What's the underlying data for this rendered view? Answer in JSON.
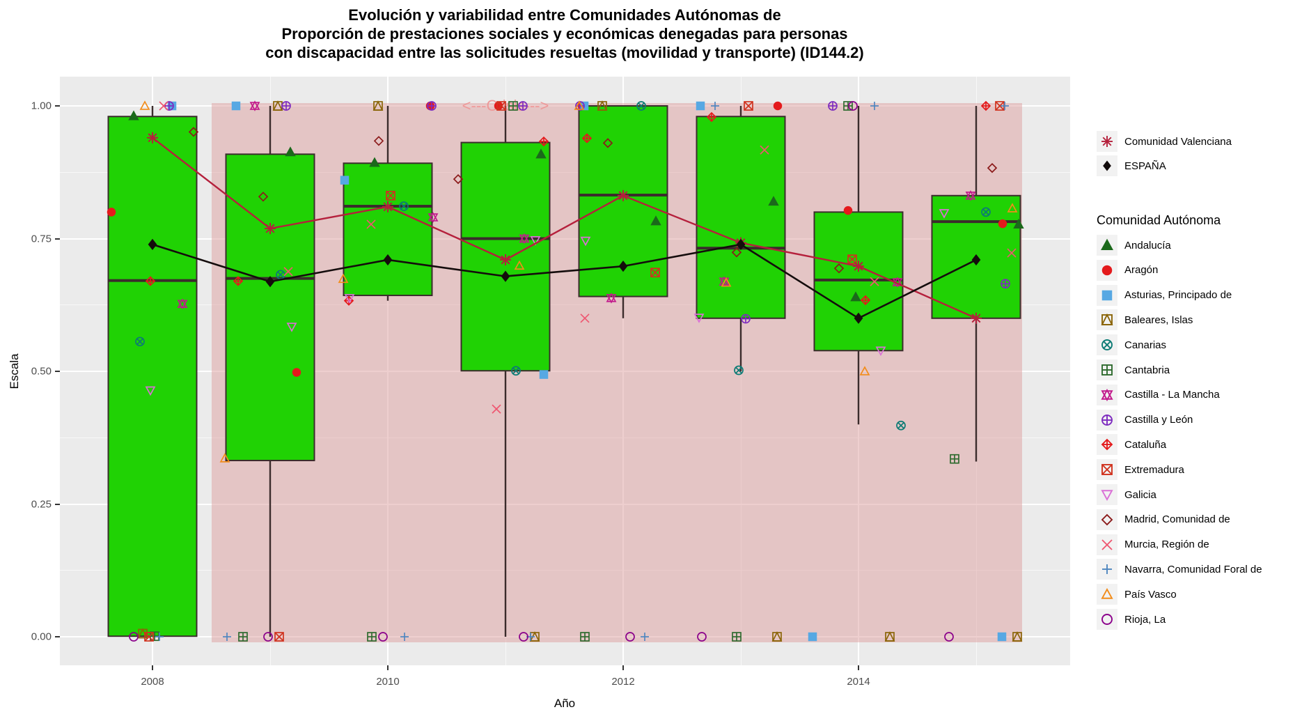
{
  "title": {
    "line1": "Evolución y variabilidad entre Comunidades Autónomas de",
    "line2": "Proporción de prestaciones sociales y económicas denegadas para personas",
    "line3": "con discapacidad entre las solicitudes resueltas (movilidad y transporte) (ID144.2)"
  },
  "axes": {
    "y_label": "Escala",
    "x_label": "Año",
    "y_ticks": [
      {
        "v": 1.0,
        "label": "1.00"
      },
      {
        "v": 0.75,
        "label": "0.75"
      },
      {
        "v": 0.5,
        "label": "0.50"
      },
      {
        "v": 0.25,
        "label": "0.25"
      },
      {
        "v": 0.0,
        "label": "0.00"
      }
    ],
    "y_minor": [
      0.125,
      0.375,
      0.625,
      0.875
    ],
    "x_ticks": [
      {
        "v": 2008,
        "label": "2008"
      },
      {
        "v": 2010,
        "label": "2010"
      },
      {
        "v": 2012,
        "label": "2012"
      },
      {
        "v": 2014,
        "label": "2014"
      }
    ],
    "x_minor": [
      2009,
      2011,
      2013,
      2015
    ]
  },
  "legend_series": {
    "items": [
      {
        "label": "Comunidad Valenciana",
        "pch": 8,
        "color": "#b5203c"
      },
      {
        "label": "ESPAÑA",
        "pch": 18,
        "color": "#120b0b"
      }
    ]
  },
  "legend_communities": {
    "title": "Comunidad Autónoma",
    "items": [
      {
        "label": "Andalucía",
        "pch": 17,
        "color": "#1b691b"
      },
      {
        "label": "Aragón",
        "pch": 16,
        "color": "#e41a1c"
      },
      {
        "label": "Asturias, Principado de",
        "pch": 15,
        "color": "#57a8e3"
      },
      {
        "label": "Baleares, Islas",
        "pch": 14,
        "color": "#8b6508"
      },
      {
        "label": "Canarias",
        "pch": 13,
        "color": "#0c7b75"
      },
      {
        "label": "Cantabria",
        "pch": 12,
        "color": "#2f6b2f"
      },
      {
        "label": "Castilla - La Mancha",
        "pch": 11,
        "color": "#c21a8c"
      },
      {
        "label": "Castilla y León",
        "pch": 10,
        "color": "#7d2bbf"
      },
      {
        "label": "Cataluña",
        "pch": 9,
        "color": "#e41a1c"
      },
      {
        "label": "Extremadura",
        "pch": 7,
        "color": "#d0321e"
      },
      {
        "label": "Galicia",
        "pch": 6,
        "color": "#da70d6"
      },
      {
        "label": "Madrid, Comunidad de",
        "pch": 5,
        "color": "#8b1a1a"
      },
      {
        "label": "Murcia, Región de",
        "pch": 4,
        "color": "#ef5670"
      },
      {
        "label": "Navarra, Comunidad Foral de",
        "pch": 3,
        "color": "#4f86c0"
      },
      {
        "label": "País Vasco",
        "pch": 2,
        "color": "#f28c1a"
      },
      {
        "label": "Rioja, La",
        "pch": 1,
        "color": "#8b008b"
      }
    ]
  },
  "chart_data": {
    "type": "boxplot+jitter+lines",
    "title": "Evolución y variabilidad entre Comunidades Autónomas de Proporción de prestaciones sociales y económicas denegadas para personas con discapacidad entre las solicitudes resueltas (movilidad y transporte) (ID144.2)",
    "xlabel": "Año",
    "ylabel": "Escala",
    "ylim": [
      0,
      1
    ],
    "years": [
      2008,
      2009,
      2010,
      2011,
      2012,
      2013,
      2014,
      2015
    ],
    "box_fill": "#20d204",
    "box_stroke": "#3b2c2c",
    "panel_color": "#ebebeb",
    "crisis_band": {
      "label": "<---Crisis--->",
      "x1": 2008.5,
      "x2": 2015.39,
      "y1": -0.01,
      "y2": 1.005,
      "label_x": 2011,
      "label_y": 1.0
    },
    "boxes": [
      {
        "year": 2008,
        "min": 0.0,
        "q1": 0.001,
        "median": 0.671,
        "q3": 0.98,
        "max": 1.0
      },
      {
        "year": 2009,
        "min": 0.0,
        "q1": 0.332,
        "median": 0.675,
        "q3": 0.909,
        "max": 1.0
      },
      {
        "year": 2010,
        "min": 0.633,
        "q1": 0.643,
        "median": 0.811,
        "q3": 0.892,
        "max": 1.0
      },
      {
        "year": 2011,
        "min": 0.0,
        "q1": 0.501,
        "median": 0.75,
        "q3": 0.931,
        "max": 1.0
      },
      {
        "year": 2012,
        "min": 0.6,
        "q1": 0.641,
        "median": 0.832,
        "q3": 1.0,
        "max": 1.0
      },
      {
        "year": 2013,
        "min": 0.5,
        "q1": 0.6,
        "median": 0.732,
        "q3": 0.98,
        "max": 1.0
      },
      {
        "year": 2014,
        "min": 0.4,
        "q1": 0.539,
        "median": 0.672,
        "q3": 0.8,
        "max": 1.0
      },
      {
        "year": 2015,
        "min": 0.33,
        "q1": 0.6,
        "median": 0.782,
        "q3": 0.831,
        "max": 1.0
      }
    ],
    "series": [
      {
        "name": "Comunidad Valenciana",
        "pch": 8,
        "color": "#b5203c",
        "width": 2.4,
        "values": [
          0.94,
          0.769,
          0.81,
          0.71,
          0.831,
          0.742,
          0.698,
          0.6
        ]
      },
      {
        "name": "ESPAÑA",
        "pch": 18,
        "color": "#140c0c",
        "width": 2.6,
        "values": [
          0.739,
          0.669,
          0.71,
          0.679,
          0.698,
          0.739,
          0.6,
          0.71
        ]
      }
    ],
    "communities": [
      {
        "name": "Andalucía",
        "pch": 17,
        "color": "#1b691b",
        "x": [
          192,
          417,
          538,
          777,
          942,
          1111,
          1229,
          1463
        ],
        "v": [
          0.981,
          0.913,
          0.893,
          0.909,
          0.783,
          0.82,
          0.64,
          0.777
        ]
      },
      {
        "name": "Aragón",
        "pch": 16,
        "color": "#e41a1c",
        "x": [
          160,
          426,
          618,
          716,
          836,
          1117,
          1218,
          1440
        ],
        "v": [
          0.8,
          0.498,
          1.0,
          1.0,
          1.0,
          1.0,
          0.803,
          0.778
        ]
      },
      {
        "name": "Asturias, Principado de",
        "pch": 15,
        "color": "#57a8e3",
        "x": [
          247,
          339,
          495,
          781,
          839,
          1006,
          1167,
          1439
        ],
        "v": [
          1.0,
          1.0,
          0.86,
          0.494,
          1.0,
          1.0,
          0.0,
          0.0
        ]
      },
      {
        "name": "Baleares, Islas",
        "pch": 14,
        "color": "#8b6508",
        "x": [
          205,
          399,
          543,
          768,
          865,
          1116,
          1278,
          1461
        ],
        "v": [
          0.006,
          1.0,
          1.0,
          0.0,
          1.0,
          0.0,
          0.0,
          0.0
        ]
      },
      {
        "name": "Canarias",
        "pch": 13,
        "color": "#0c7b75",
        "x": [
          201,
          403,
          580,
          741,
          921,
          1061,
          1294,
          1416
        ],
        "v": [
          0.556,
          0.682,
          0.811,
          0.501,
          1.0,
          0.502,
          0.398,
          0.8
        ]
      },
      {
        "name": "Cantabria",
        "pch": 12,
        "color": "#2f6b2f",
        "x": [
          222,
          349,
          534,
          737,
          840,
          1058,
          1218,
          1371
        ],
        "v": [
          0.001,
          0.0,
          0.0,
          1.0,
          0.0,
          0.0,
          1.0,
          0.335
        ]
      },
      {
        "name": "Castilla - La Mancha",
        "pch": 11,
        "color": "#c21a8c",
        "x": [
          262,
          366,
          622,
          753,
          878,
          1040,
          1289,
          1394
        ],
        "v": [
          0.627,
          1.0,
          0.79,
          0.75,
          0.638,
          0.669,
          0.668,
          0.831
        ]
      },
      {
        "name": "Castilla y León",
        "pch": 10,
        "color": "#7d2bbf",
        "x": [
          243,
          411,
          620,
          751,
          833,
          1071,
          1196,
          1444
        ],
        "v": [
          1.0,
          1.0,
          1.0,
          1.0,
          1.0,
          0.599,
          1.0,
          0.665
        ]
      },
      {
        "name": "Cataluña",
        "pch": 9,
        "color": "#e41a1c",
        "x": [
          216,
          342,
          501,
          781,
          843,
          1022,
          1243,
          1416
        ],
        "v": [
          0.67,
          0.67,
          0.633,
          0.933,
          0.939,
          0.979,
          0.634,
          1.0
        ]
      },
      {
        "name": "Extremadura",
        "pch": 7,
        "color": "#d0321e",
        "x": [
          214,
          401,
          561,
          720,
          941,
          1075,
          1224,
          1436
        ],
        "v": [
          0.0,
          0.0,
          0.831,
          1.0,
          0.686,
          1.0,
          0.711,
          1.0
        ]
      },
      {
        "name": "Galicia",
        "pch": 6,
        "color": "#da70d6",
        "x": [
          216,
          419,
          502,
          769,
          841,
          1004,
          1265,
          1356
        ],
        "v": [
          0.464,
          0.584,
          0.638,
          0.747,
          0.746,
          0.601,
          0.539,
          0.798
        ]
      },
      {
        "name": "Madrid, Comunidad de",
        "pch": 5,
        "color": "#8b1a1a",
        "x": [
          278,
          378,
          544,
          658,
          873,
          1058,
          1205,
          1425
        ],
        "v": [
          0.951,
          0.829,
          0.934,
          0.862,
          0.93,
          0.724,
          0.694,
          0.883
        ]
      },
      {
        "name": "Murcia, Región de",
        "pch": 4,
        "color": "#ef5670",
        "x": [
          235,
          414,
          533,
          713,
          840,
          1098,
          1256,
          1453
        ],
        "v": [
          1.0,
          0.688,
          0.777,
          0.429,
          0.6,
          0.917,
          0.669,
          0.723
        ]
      },
      {
        "name": "Navarra, Comunidad Foral de",
        "pch": 3,
        "color": "#4f86c0",
        "x": [
          229,
          326,
          581,
          762,
          926,
          1027,
          1256,
          1443
        ],
        "v": [
          0.0,
          0.0,
          0.0,
          0.0,
          0.0,
          1.0,
          1.0,
          1.0
        ]
      },
      {
        "name": "País Vasco",
        "pch": 2,
        "color": "#f28c1a",
        "x": [
          208,
          323,
          493,
          746,
          832,
          1043,
          1242,
          1454
        ],
        "v": [
          1.0,
          0.336,
          0.674,
          0.699,
          1.0,
          0.667,
          0.5,
          0.807
        ]
      },
      {
        "name": "Rioja, La",
        "pch": 1,
        "color": "#8b008b",
        "x": [
          192,
          385,
          550,
          752,
          905,
          1008,
          1225,
          1363
        ],
        "v": [
          0.0,
          0.0,
          0.0,
          0.0,
          0.0,
          0.0,
          1.0,
          0.0
        ]
      }
    ]
  }
}
